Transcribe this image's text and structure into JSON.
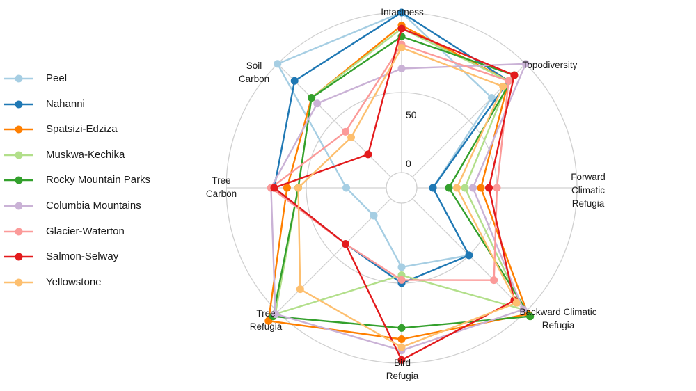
{
  "chart_data": {
    "type": "radar",
    "axes": [
      [
        "Intactness"
      ],
      [
        "Topodiversity"
      ],
      [
        "Forward",
        "Climatic",
        "Refugia"
      ],
      [
        "Backward Climatic",
        "Refugia"
      ],
      [
        "Bird",
        "Refugia"
      ],
      [
        "Tree",
        "Refugia"
      ],
      [
        "Tree",
        "Carbon"
      ],
      [
        "Soil",
        "Carbon"
      ]
    ],
    "radial_ticks": [
      "0",
      "50"
    ],
    "series": [
      {
        "name": "Peel",
        "color": "#a6cee3",
        "values": [
          100,
          70,
          10,
          50,
          40,
          15,
          25,
          100
        ]
      },
      {
        "name": "Nahanni",
        "color": "#1f78b4",
        "values": [
          100,
          85,
          10,
          50,
          50,
          40,
          70,
          85
        ]
      },
      {
        "name": "Spatsizi-Edziza",
        "color": "#ff7f00",
        "values": [
          92,
          85,
          40,
          102,
          85,
          108,
          62,
          70
        ]
      },
      {
        "name": "Muskwa-Kechika",
        "color": "#b2df8a",
        "values": [
          90,
          85,
          30,
          98,
          45,
          102,
          55,
          70
        ]
      },
      {
        "name": "Rocky Mountain Parks",
        "color": "#33a02c",
        "values": [
          85,
          90,
          20,
          104,
          78,
          104,
          55,
          70
        ]
      },
      {
        "name": "Columbia Mountains",
        "color": "#cab2d6",
        "values": [
          65,
          100,
          35,
          98,
          92,
          102,
          72,
          65
        ]
      },
      {
        "name": "Glacier-Waterton",
        "color": "#fb9a99",
        "values": [
          80,
          85,
          50,
          72,
          48,
          40,
          72,
          40
        ]
      },
      {
        "name": "Salmon-Selway",
        "color": "#e31a1c",
        "values": [
          90,
          90,
          45,
          90,
          98,
          40,
          70,
          20
        ]
      },
      {
        "name": "Yellowstone",
        "color": "#fdbf6f",
        "values": [
          78,
          80,
          25,
          92,
          90,
          80,
          55,
          35
        ]
      }
    ]
  }
}
